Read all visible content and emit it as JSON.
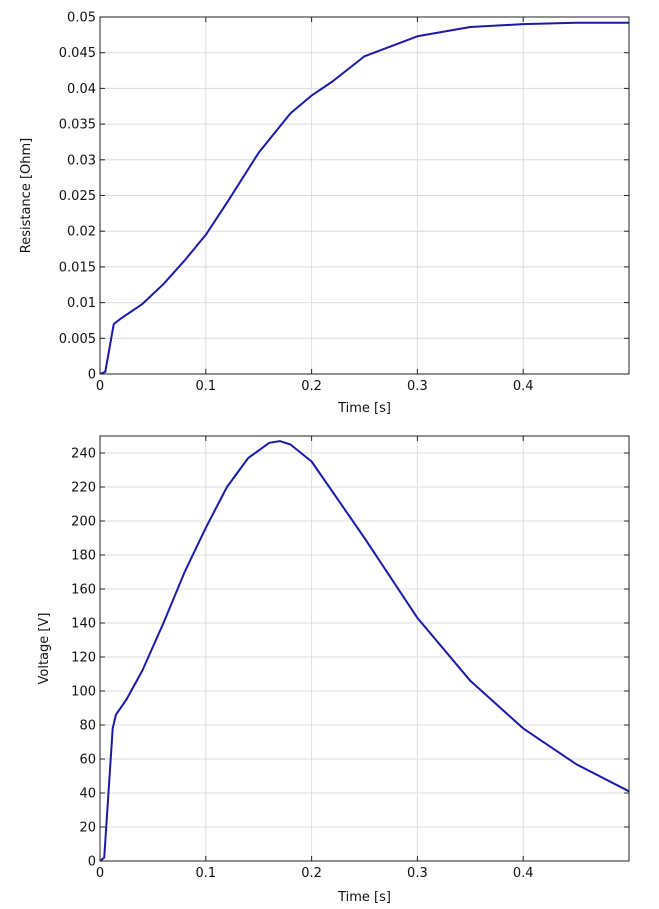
{
  "chart_data": [
    {
      "type": "line",
      "title": "",
      "xlabel": "Time [s]",
      "ylabel": "Resistance [Ohm]",
      "xlim": [
        0,
        0.5
      ],
      "ylim": [
        0,
        0.05
      ],
      "xticks": [
        0,
        0.1,
        0.2,
        0.3,
        0.4
      ],
      "xtick_labels": [
        "0",
        "0.1",
        "0.2",
        "0.3",
        "0.4"
      ],
      "yticks": [
        0,
        0.005,
        0.01,
        0.015,
        0.02,
        0.025,
        0.03,
        0.035,
        0.04,
        0.045,
        0.05
      ],
      "ytick_labels": [
        "0",
        "0.005",
        "0.01",
        "0.015",
        "0.02",
        "0.025",
        "0.03",
        "0.035",
        "0.04",
        "0.045",
        "0.05"
      ],
      "grid": true,
      "line_color": "#1a1aa6",
      "series": [
        {
          "x": [
            0,
            0.005,
            0.013,
            0.02,
            0.04,
            0.06,
            0.08,
            0.1,
            0.12,
            0.15,
            0.18,
            0.2,
            0.22,
            0.25,
            0.3,
            0.35,
            0.4,
            0.45,
            0.5
          ],
          "y": [
            0,
            0.0003,
            0.007,
            0.0078,
            0.0098,
            0.0126,
            0.0159,
            0.0195,
            0.024,
            0.031,
            0.0365,
            0.039,
            0.041,
            0.0445,
            0.0473,
            0.0486,
            0.049,
            0.0492,
            0.0492
          ]
        }
      ]
    },
    {
      "type": "line",
      "title": "",
      "xlabel": "Time [s]",
      "ylabel": "Voltage [V]",
      "xlim": [
        0,
        0.5
      ],
      "ylim": [
        0,
        250
      ],
      "xticks": [
        0,
        0.1,
        0.2,
        0.3,
        0.4
      ],
      "xtick_labels": [
        "0",
        "0.1",
        "0.2",
        "0.3",
        "0.4"
      ],
      "yticks": [
        0,
        20,
        40,
        60,
        80,
        100,
        120,
        140,
        160,
        180,
        200,
        220,
        240
      ],
      "ytick_labels": [
        "0",
        "20",
        "40",
        "60",
        "80",
        "100",
        "120",
        "140",
        "160",
        "180",
        "200",
        "220",
        "240"
      ],
      "grid": true,
      "line_color": "#1a1aa6",
      "series": [
        {
          "x": [
            0,
            0.004,
            0.008,
            0.012,
            0.015,
            0.025,
            0.04,
            0.06,
            0.08,
            0.1,
            0.12,
            0.14,
            0.16,
            0.17,
            0.18,
            0.2,
            0.25,
            0.3,
            0.35,
            0.4,
            0.45,
            0.5
          ],
          "y": [
            0,
            2,
            40,
            78,
            86,
            95,
            112,
            140,
            170,
            196,
            220,
            237,
            246,
            247,
            245,
            235,
            190,
            143,
            106,
            78,
            57,
            41
          ]
        }
      ]
    }
  ]
}
